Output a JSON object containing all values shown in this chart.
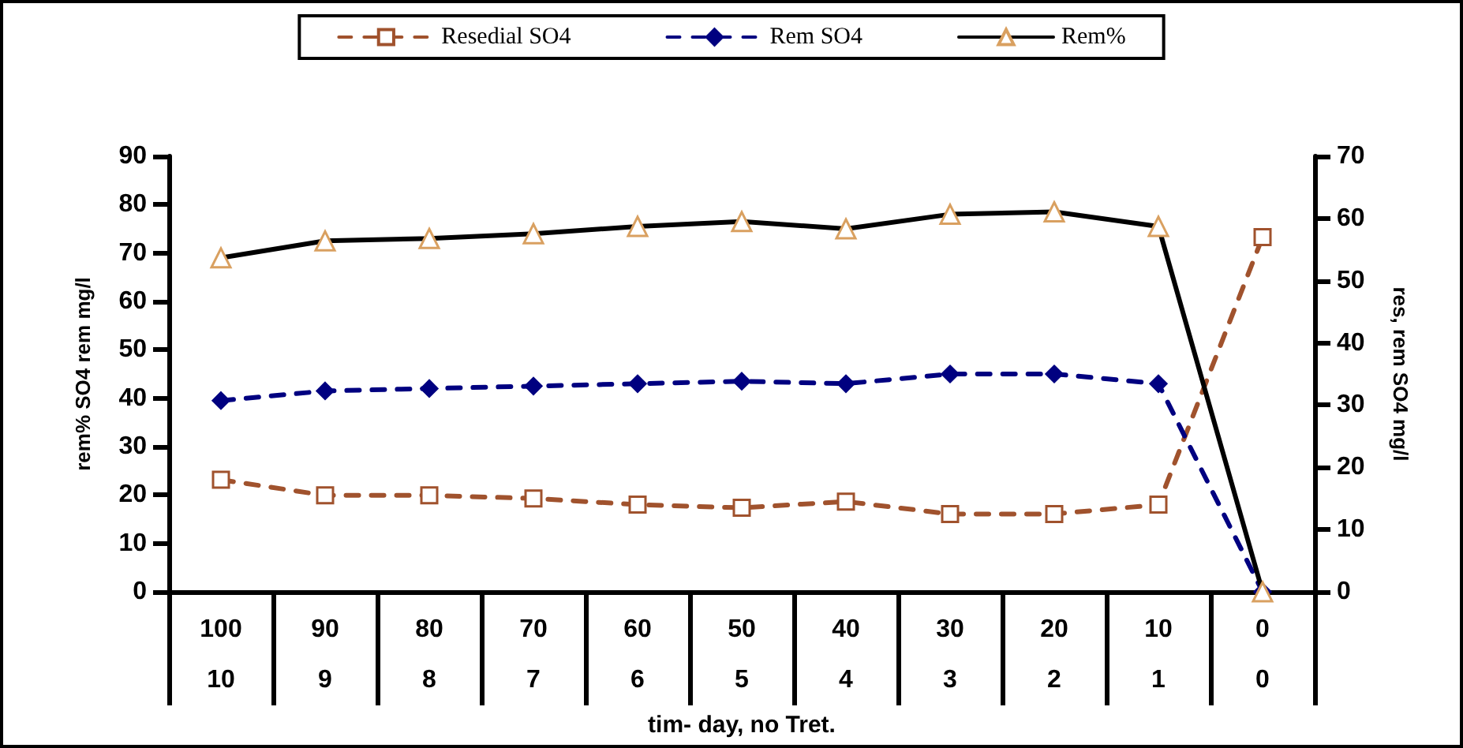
{
  "chart_data": {
    "type": "line",
    "categories": [
      "100\n10",
      "90\n9",
      "80\n8",
      "70\n7",
      "60\n6",
      "50\n5",
      "40\n4",
      "30\n3",
      "20\n2",
      "10\n1",
      "0\n0"
    ],
    "series": [
      {
        "name": "Resedial SO4",
        "color": "#a0522d",
        "axis": "y2",
        "marker": "square",
        "line_style": "dashed",
        "values": [
          18,
          15.5,
          15.5,
          15,
          14,
          13.5,
          14.5,
          12.5,
          12.5,
          14,
          57
        ]
      },
      {
        "name": "Rem SO4",
        "color": "#000080",
        "marker": "diamond",
        "line_style": "dashed",
        "values": [
          39.5,
          41.5,
          42,
          42.5,
          43,
          43.5,
          43,
          45,
          45,
          43,
          0
        ]
      },
      {
        "name": "Rem%",
        "color": "#000000",
        "marker": "triangle",
        "line_style": "solid",
        "values": [
          69,
          72.5,
          73,
          74,
          75.5,
          76.5,
          75,
          78,
          78.5,
          75.5,
          0
        ]
      }
    ],
    "xlabel": "tim- day, no Tret.",
    "ylabel": "rem% SO4 rem mg/l",
    "y2label": "res, rem SO4 mg/l",
    "ylim": [
      0,
      90
    ],
    "yticks": [
      0,
      10,
      20,
      30,
      40,
      50,
      60,
      70,
      80,
      90
    ],
    "y2lim": [
      0,
      70
    ],
    "y2ticks": [
      0,
      10,
      20,
      30,
      40,
      50,
      60,
      70
    ],
    "grid": false,
    "legend": "top"
  }
}
